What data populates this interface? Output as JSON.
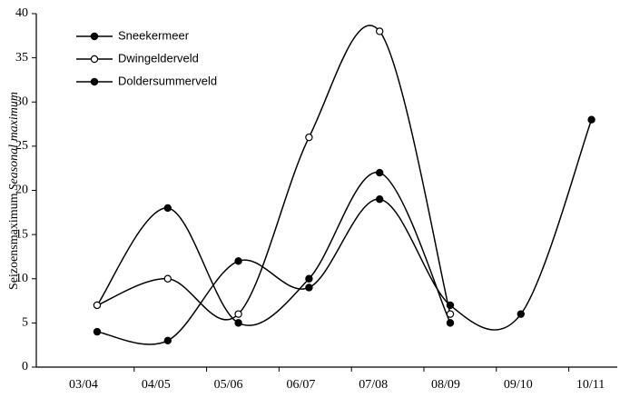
{
  "chart_data": {
    "type": "line",
    "y_label": "Seizoensmaximum",
    "y_label_italic": "Seasonal maximum",
    "categories": [
      "03/04",
      "04/05",
      "05/06",
      "06/07",
      "07/08",
      "08/09",
      "09/10",
      "10/11"
    ],
    "series": [
      {
        "name": "Sneekermeer",
        "color": "#000000",
        "marker": "filled",
        "values": [
          7,
          18,
          5,
          10,
          22,
          5,
          null,
          null
        ]
      },
      {
        "name": "Dwingelderveld",
        "color": "#000000",
        "marker": "open",
        "values": [
          7,
          10,
          6,
          26,
          38,
          6,
          null,
          null
        ]
      },
      {
        "name": "Doldersummerveld",
        "color": "#000000",
        "marker": "filled",
        "values": [
          4,
          3,
          12,
          9,
          19,
          7,
          6,
          28
        ]
      }
    ],
    "ylim": [
      0,
      40
    ],
    "yticks": [
      0,
      5,
      10,
      15,
      20,
      25,
      30,
      35,
      40
    ],
    "legend": "top-left"
  }
}
